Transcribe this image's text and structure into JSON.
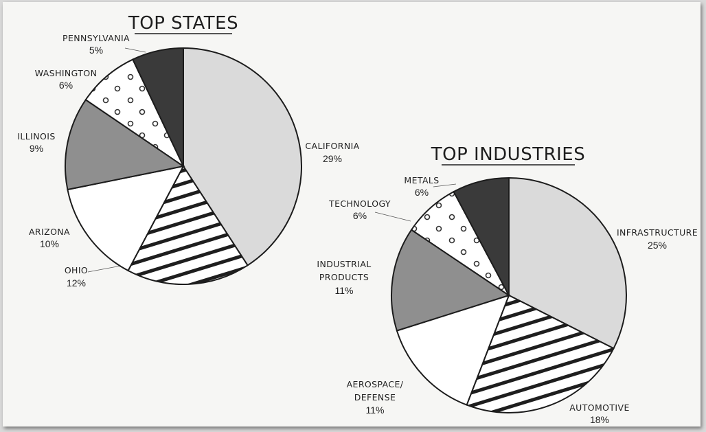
{
  "chart_data": [
    {
      "type": "pie",
      "title": "TOP STATES",
      "slices": [
        {
          "label": "CALIFORNIA",
          "value": 29,
          "value_label": "29%",
          "pattern": "light-gray"
        },
        {
          "label": "OHIO",
          "value": 12,
          "value_label": "12%",
          "pattern": "stripes"
        },
        {
          "label": "ARIZONA",
          "value": 10,
          "value_label": "10%",
          "pattern": "white"
        },
        {
          "label": "ILLINOIS",
          "value": 9,
          "value_label": "9%",
          "pattern": "gray"
        },
        {
          "label": "WASHINGTON",
          "value": 6,
          "value_label": "6%",
          "pattern": "dots"
        },
        {
          "label": "PENNSYLVANIA",
          "value": 5,
          "value_label": "5%",
          "pattern": "dark"
        }
      ]
    },
    {
      "type": "pie",
      "title": "TOP INDUSTRIES",
      "slices": [
        {
          "label": "INFRASTRUCTURE",
          "value": 25,
          "value_label": "25%",
          "pattern": "light-gray"
        },
        {
          "label": "AUTOMOTIVE",
          "value": 18,
          "value_label": "18%",
          "pattern": "stripes"
        },
        {
          "label": "AEROSPACE/\nDEFENSE",
          "value": 11,
          "value_label": "11%",
          "pattern": "white"
        },
        {
          "label": "INDUSTRIAL\nPRODUCTS",
          "value": 11,
          "value_label": "11%",
          "pattern": "gray"
        },
        {
          "label": "TECHNOLOGY",
          "value": 6,
          "value_label": "6%",
          "pattern": "dots"
        },
        {
          "label": "METALS",
          "value": 6,
          "value_label": "6%",
          "pattern": "dark"
        }
      ]
    }
  ],
  "colors": {
    "light-gray": "#dadada",
    "white": "#ffffff",
    "gray": "#8f8f8f",
    "dark": "#3a3a3a",
    "stripe": "#1e1e1e",
    "outline": "#1c1c1c"
  }
}
